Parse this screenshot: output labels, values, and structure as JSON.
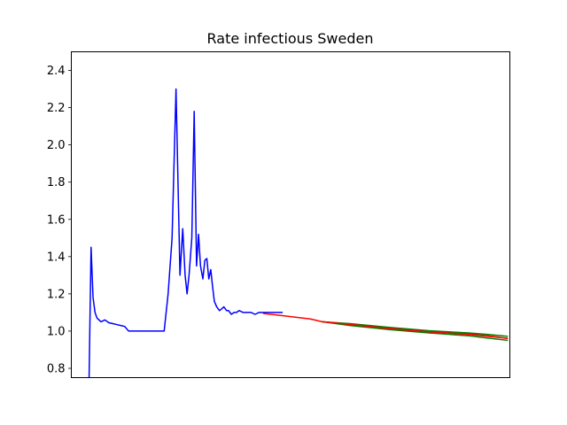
{
  "chart_data": {
    "type": "line",
    "title": "Rate infectious Sweden",
    "xlabel": "",
    "ylabel": "",
    "ylim": [
      0.75,
      2.5
    ],
    "yticks": [
      0.8,
      1.0,
      1.2,
      1.4,
      1.6,
      1.8,
      2.0,
      2.2,
      2.4
    ],
    "xticks_visible": false,
    "grid": false,
    "xlim": [
      -0.5,
      110.5
    ],
    "series": [
      {
        "color": "#0000ff",
        "x": [
          4,
          4.5,
          5,
          5.5,
          6,
          7,
          8,
          9,
          10,
          11,
          12,
          13,
          14,
          15,
          16,
          17,
          18,
          19,
          20,
          21,
          22,
          23,
          24,
          25,
          26,
          27,
          27.7,
          28.3,
          28.8,
          29.3,
          30,
          30.6,
          31.2,
          31.7,
          32.2,
          32.8,
          33.3,
          33.8,
          34.3,
          34.8,
          35.2,
          35.7,
          36.3,
          37,
          37.6,
          38.1,
          38.8,
          39.3,
          40,
          40.7,
          41.3,
          42,
          43,
          44,
          45,
          46,
          47,
          48,
          49,
          50,
          51,
          52,
          53
        ],
        "y": [
          0.75,
          1.45,
          1.18,
          1.1,
          1.07,
          1.05,
          1.06,
          1.045,
          1.04,
          1.035,
          1.03,
          1.025,
          1.0,
          1.0,
          1.0,
          1.0,
          1.0,
          1.0,
          1.0,
          1.0,
          1.0,
          1.0,
          1.2,
          1.5,
          2.3,
          1.3,
          1.55,
          1.3,
          1.2,
          1.3,
          1.5,
          2.18,
          1.35,
          1.52,
          1.35,
          1.28,
          1.38,
          1.39,
          1.28,
          1.33,
          1.25,
          1.16,
          1.13,
          1.11,
          1.12,
          1.13,
          1.11,
          1.11,
          1.09,
          1.1,
          1.1,
          1.11,
          1.1,
          1.1,
          1.1,
          1.09,
          1.1,
          1.1,
          1.1,
          1.1,
          1.1,
          1.1,
          1.1
        ]
      },
      {
        "color": "#ff0000",
        "x": [
          48,
          52,
          56,
          60,
          63,
          70,
          80,
          90,
          100,
          105,
          110
        ],
        "y": [
          1.095,
          1.085,
          1.075,
          1.065,
          1.05,
          1.035,
          1.015,
          0.998,
          0.985,
          0.975,
          0.96
        ]
      },
      {
        "color": "#008000",
        "x": [
          63,
          70,
          80,
          90,
          100,
          105,
          110
        ],
        "y": [
          1.05,
          1.04,
          1.02,
          1.002,
          0.99,
          0.982,
          0.972
        ]
      },
      {
        "color": "#008000",
        "x": [
          63,
          70,
          80,
          90,
          100,
          105,
          110
        ],
        "y": [
          1.05,
          1.03,
          1.008,
          0.99,
          0.975,
          0.962,
          0.95
        ]
      },
      {
        "color": "#ff0000",
        "x": [
          63,
          70,
          80,
          90,
          100,
          105,
          110
        ],
        "y": [
          1.05,
          1.036,
          1.014,
          0.996,
          0.982,
          0.972,
          0.961
        ]
      }
    ]
  }
}
